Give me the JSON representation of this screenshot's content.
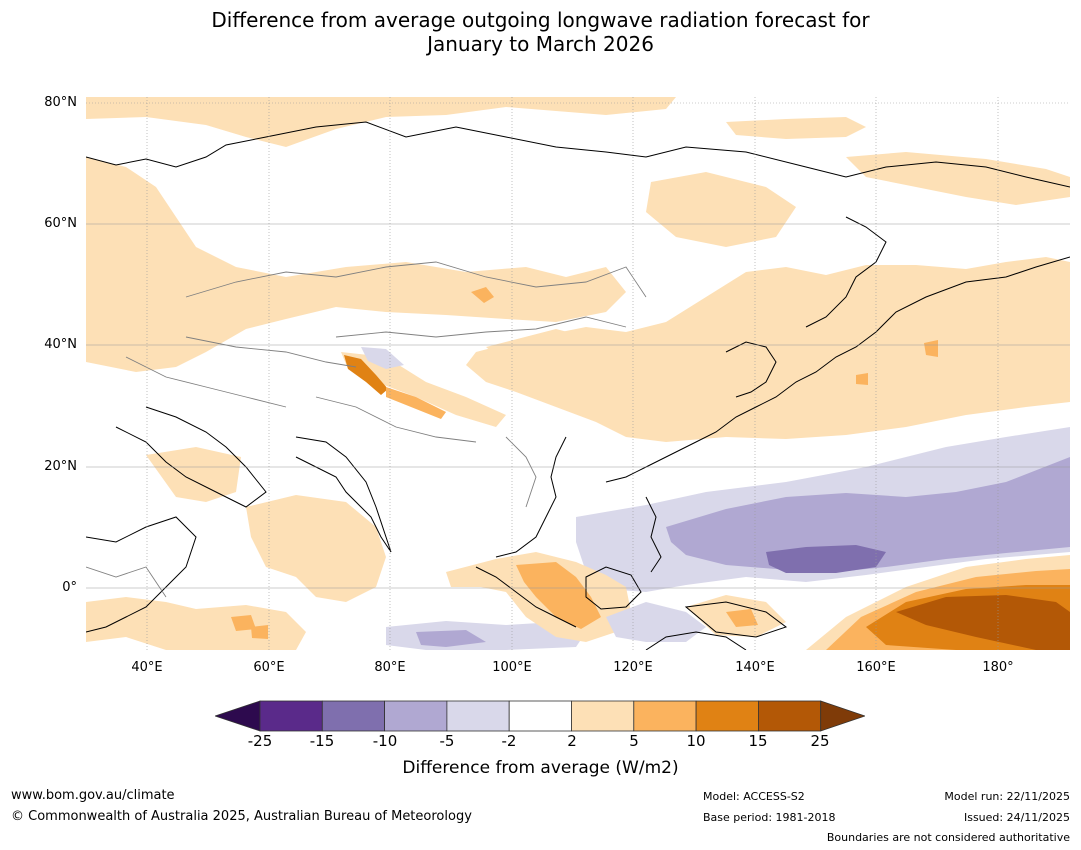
{
  "title_line1": "Difference from average outgoing longwave radiation forecast for",
  "title_line2": "January to March 2026",
  "map": {
    "lat_labels": [
      "80°N",
      "60°N",
      "40°N",
      "20°N",
      "0°"
    ],
    "lon_labels": [
      "40°E",
      "60°E",
      "80°E",
      "100°E",
      "120°E",
      "140°E",
      "160°E",
      "180°"
    ],
    "lat_range": [
      -10,
      81
    ],
    "lon_range": [
      30,
      192
    ]
  },
  "legend": {
    "label": "Difference from average (W/m2)",
    "ticks": [
      "-25",
      "-15",
      "-10",
      "-5",
      "-2",
      "2",
      "5",
      "10",
      "15",
      "25"
    ],
    "colors": {
      "under": "#2d0a4e",
      "n25_15": "#5a2a8a",
      "n15_10": "#7f6fae",
      "n10_5": "#b0a8d2",
      "n5_2": "#d9d8ea",
      "n2_2": "#ffffff",
      "p2_5": "#fde0b6",
      "p5_10": "#fbb35e",
      "p10_15": "#e08214",
      "p15_25": "#b35806",
      "over": "#7f3b08"
    }
  },
  "footer": {
    "website": "www.bom.gov.au/climate",
    "copyright": "© Commonwealth of Australia 2025, Australian Bureau of Meteorology",
    "model": "Model: ACCESS-S2",
    "base_period": "Base period: 1981-2018",
    "model_run": "Model run: 22/11/2025",
    "issued": "Issued: 24/11/2025",
    "disclaimer": "Boundaries are not considered authoritative"
  }
}
